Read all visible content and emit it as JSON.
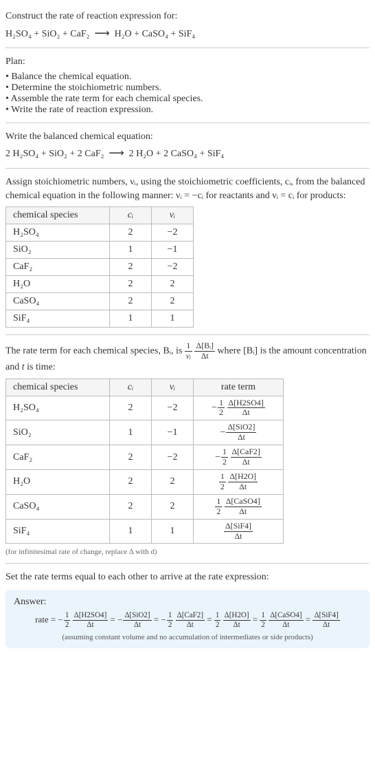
{
  "intro": {
    "prompt": "Construct the rate of reaction expression for:",
    "equation_lhs": [
      "H₂SO₄",
      "SiO₂",
      "CaF₂"
    ],
    "equation_rhs": [
      "H₂O",
      "CaSO₄",
      "SiF₄"
    ],
    "arrow": "⟶"
  },
  "plan": {
    "title": "Plan:",
    "items": [
      "Balance the chemical equation.",
      "Determine the stoichiometric numbers.",
      "Assemble the rate term for each chemical species.",
      "Write the rate of reaction expression."
    ]
  },
  "balanced": {
    "title": "Write the balanced chemical equation:",
    "lhs": [
      {
        "coef": "2",
        "sp": "H₂SO₄"
      },
      {
        "coef": "",
        "sp": "SiO₂"
      },
      {
        "coef": "2",
        "sp": "CaF₂"
      }
    ],
    "rhs": [
      {
        "coef": "2",
        "sp": "H₂O"
      },
      {
        "coef": "2",
        "sp": "CaSO₄"
      },
      {
        "coef": "",
        "sp": "SiF₄"
      }
    ],
    "arrow": "⟶"
  },
  "stoich_text": {
    "para": "Assign stoichiometric numbers, νᵢ, using the stoichiometric coefficients, cᵢ, from the balanced chemical equation in the following manner: νᵢ = −cᵢ for reactants and νᵢ = cᵢ for products:"
  },
  "table1": {
    "headers": [
      "chemical species",
      "cᵢ",
      "νᵢ"
    ],
    "rows": [
      [
        "H₂SO₄",
        "2",
        "−2"
      ],
      [
        "SiO₂",
        "1",
        "−1"
      ],
      [
        "CaF₂",
        "2",
        "−2"
      ],
      [
        "H₂O",
        "2",
        "2"
      ],
      [
        "CaSO₄",
        "2",
        "2"
      ],
      [
        "SiF₄",
        "1",
        "1"
      ]
    ],
    "col_widths": [
      "130px",
      "40px",
      "40px"
    ]
  },
  "rate_term_intro": {
    "pre": "The rate term for each chemical species, Bᵢ, is ",
    "frac1_num": "1",
    "frac1_den": "νᵢ",
    "frac2_num": "Δ[Bᵢ]",
    "frac2_den": "Δt",
    "mid": " where [Bᵢ] is the amount concentration and ",
    "tvar": "t",
    "post": " is time:"
  },
  "table2": {
    "headers": [
      "chemical species",
      "cᵢ",
      "νᵢ",
      "rate term"
    ],
    "rows": [
      {
        "sp": "H₂SO₄",
        "c": "2",
        "v": "−2",
        "sign": "−",
        "coef_num": "1",
        "coef_den": "2",
        "d_num": "Δ[H2SO4]",
        "d_den": "Δt"
      },
      {
        "sp": "SiO₂",
        "c": "1",
        "v": "−1",
        "sign": "−",
        "coef_num": "",
        "coef_den": "",
        "d_num": "Δ[SiO2]",
        "d_den": "Δt"
      },
      {
        "sp": "CaF₂",
        "c": "2",
        "v": "−2",
        "sign": "−",
        "coef_num": "1",
        "coef_den": "2",
        "d_num": "Δ[CaF2]",
        "d_den": "Δt"
      },
      {
        "sp": "H₂O",
        "c": "2",
        "v": "2",
        "sign": "",
        "coef_num": "1",
        "coef_den": "2",
        "d_num": "Δ[H2O]",
        "d_den": "Δt"
      },
      {
        "sp": "CaSO₄",
        "c": "2",
        "v": "2",
        "sign": "",
        "coef_num": "1",
        "coef_den": "2",
        "d_num": "Δ[CaSO4]",
        "d_den": "Δt"
      },
      {
        "sp": "SiF₄",
        "c": "1",
        "v": "1",
        "sign": "",
        "coef_num": "",
        "coef_den": "",
        "d_num": "Δ[SiF4]",
        "d_den": "Δt"
      }
    ],
    "col_widths": [
      "130px",
      "40px",
      "40px",
      "110px"
    ],
    "footnote": "(for infinitesimal rate of change, replace Δ with d)"
  },
  "final": {
    "title": "Set the rate terms equal to each other to arrive at the rate expression:"
  },
  "answer": {
    "label": "Answer:",
    "lead": "rate = ",
    "terms": [
      {
        "sign": "−",
        "coef_num": "1",
        "coef_den": "2",
        "d_num": "Δ[H2SO4]",
        "d_den": "Δt"
      },
      {
        "sign": "−",
        "coef_num": "",
        "coef_den": "",
        "d_num": "Δ[SiO2]",
        "d_den": "Δt"
      },
      {
        "sign": "−",
        "coef_num": "1",
        "coef_den": "2",
        "d_num": "Δ[CaF2]",
        "d_den": "Δt"
      },
      {
        "sign": "",
        "coef_num": "1",
        "coef_den": "2",
        "d_num": "Δ[H2O]",
        "d_den": "Δt"
      },
      {
        "sign": "",
        "coef_num": "1",
        "coef_den": "2",
        "d_num": "Δ[CaSO4]",
        "d_den": "Δt"
      },
      {
        "sign": "",
        "coef_num": "",
        "coef_den": "",
        "d_num": "Δ[SiF4]",
        "d_den": "Δt"
      }
    ],
    "note": "(assuming constant volume and no accumulation of intermediates or side products)"
  },
  "colors": {
    "rule": "#cccccc",
    "table_border": "#bbbbbb",
    "answer_bg": "#eaf4fb",
    "text": "#333333",
    "note": "#666666"
  }
}
